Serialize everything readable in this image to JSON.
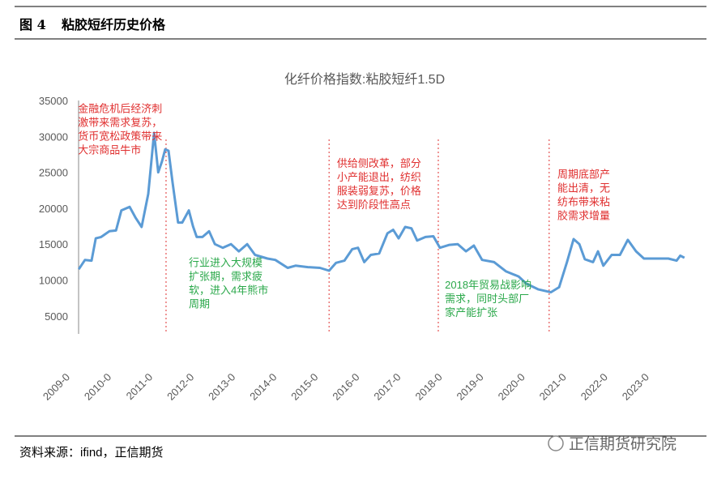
{
  "figure_label": "图 4",
  "figure_title": "粘胶短纤历史价格",
  "source": "资料来源：ifind，正信期货",
  "watermark": "正信期货研究院",
  "chart_data": {
    "type": "line",
    "title": "化纤价格指数:粘胶短纤1.5D",
    "x": [
      2009.2,
      2009.35,
      2009.51,
      2009.61,
      2009.74,
      2009.94,
      2010.1,
      2010.23,
      2010.43,
      2010.57,
      2010.72,
      2010.88,
      2011.02,
      2011.12,
      2011.21,
      2011.29,
      2011.37,
      2011.47,
      2011.6,
      2011.7,
      2011.86,
      2011.96,
      2012.05,
      2012.19,
      2012.35,
      2012.49,
      2012.68,
      2012.88,
      2013.07,
      2013.27,
      2013.46,
      2013.76,
      2013.95,
      2014.25,
      2014.44,
      2014.74,
      2015.03,
      2015.25,
      2015.42,
      2015.62,
      2015.81,
      2015.95,
      2016.1,
      2016.26,
      2016.46,
      2016.66,
      2016.8,
      2016.93,
      2017.09,
      2017.24,
      2017.38,
      2017.58,
      2017.77,
      2017.93,
      2018.16,
      2018.36,
      2018.56,
      2018.75,
      2018.95,
      2019.24,
      2019.53,
      2019.83,
      2020.02,
      2020.31,
      2020.61,
      2020.81,
      2021.0,
      2021.16,
      2021.3,
      2021.43,
      2021.63,
      2021.75,
      2021.88,
      2022.08,
      2022.28,
      2022.47,
      2022.67,
      2022.86,
      2023.16,
      2023.45,
      2023.65,
      2023.74,
      2023.84
    ],
    "series": [
      {
        "color": "#5b9bd5",
        "values": [
          11500,
          12800,
          12700,
          15800,
          16000,
          16800,
          16900,
          19700,
          20200,
          18700,
          17400,
          22000,
          30500,
          25000,
          26500,
          28200,
          28000,
          23500,
          18000,
          18000,
          19700,
          17500,
          16000,
          16000,
          16800,
          15000,
          14500,
          15000,
          14000,
          15000,
          13500,
          13000,
          12800,
          11700,
          12000,
          11800,
          11700,
          11300,
          12400,
          12700,
          14300,
          14500,
          12500,
          13500,
          13700,
          16500,
          17000,
          15800,
          17400,
          17200,
          15500,
          16000,
          16100,
          14500,
          14900,
          15000,
          14000,
          14800,
          12800,
          12500,
          11200,
          10500,
          9500,
          8700,
          8300,
          9000,
          12500,
          15700,
          15000,
          12900,
          12500,
          14000,
          12000,
          13500,
          13500,
          15600,
          14000,
          13000,
          13000,
          13000,
          12700,
          13400,
          13100
        ]
      }
    ],
    "xlim": [
      2009.0,
      2024.0
    ],
    "xticks": [
      {
        "value": 2009,
        "label": "2009-0"
      },
      {
        "value": 2010,
        "label": "2010-0"
      },
      {
        "value": 2011,
        "label": "2011-0"
      },
      {
        "value": 2012,
        "label": "2012-0"
      },
      {
        "value": 2013,
        "label": "2013-0"
      },
      {
        "value": 2014,
        "label": "2014-0"
      },
      {
        "value": 2015,
        "label": "2015-0"
      },
      {
        "value": 2016,
        "label": "2016-0"
      },
      {
        "value": 2017,
        "label": "2017-0"
      },
      {
        "value": 2018,
        "label": "2018-0"
      },
      {
        "value": 2019,
        "label": "2019-0"
      },
      {
        "value": 2020,
        "label": "2020-0"
      },
      {
        "value": 2021,
        "label": "2021-0"
      },
      {
        "value": 2022,
        "label": "2022-0"
      },
      {
        "value": 2023,
        "label": "2023-0"
      }
    ],
    "ylim": [
      2500,
      35000
    ],
    "yticks": [
      5000,
      10000,
      15000,
      20000,
      25000,
      30000,
      35000
    ],
    "grid": false,
    "vlines": [
      {
        "x": 2011.31,
        "color": "#e03030"
      },
      {
        "x": 2015.25,
        "color": "#e03030"
      },
      {
        "x": 2017.89,
        "color": "#e03030"
      },
      {
        "x": 2020.57,
        "color": "#e03030"
      }
    ],
    "annotations": [
      {
        "lines": [
          "金融危机后经济刺",
          "激带来需求复苏，",
          "货币宽松政策带来",
          "大宗商品牛市"
        ],
        "color": "#e03030",
        "x": 2009.18,
        "y": 34700
      },
      {
        "lines": [
          "行业进入大规模",
          "扩张期，需求疲",
          "软，进入4年熊市",
          "周期"
        ],
        "color": "#2aa84a",
        "x": 2011.86,
        "y": 13300
      },
      {
        "lines": [
          "供给侧改革，部分",
          "小产能退出，纺织",
          "服装弱复苏，价格",
          "达到阶段性高点"
        ],
        "color": "#e03030",
        "x": 2015.44,
        "y": 27100
      },
      {
        "lines": [
          "2018年贸易战影响",
          "需求，同时头部厂",
          "家产能扩张"
        ],
        "color": "#2aa84a",
        "x": 2018.05,
        "y": 10200
      },
      {
        "lines": [
          "周期底部产",
          "能出清，无",
          "纺布带来粘",
          "胶需求增量"
        ],
        "color": "#e03030",
        "x": 2020.77,
        "y": 25600
      }
    ]
  }
}
